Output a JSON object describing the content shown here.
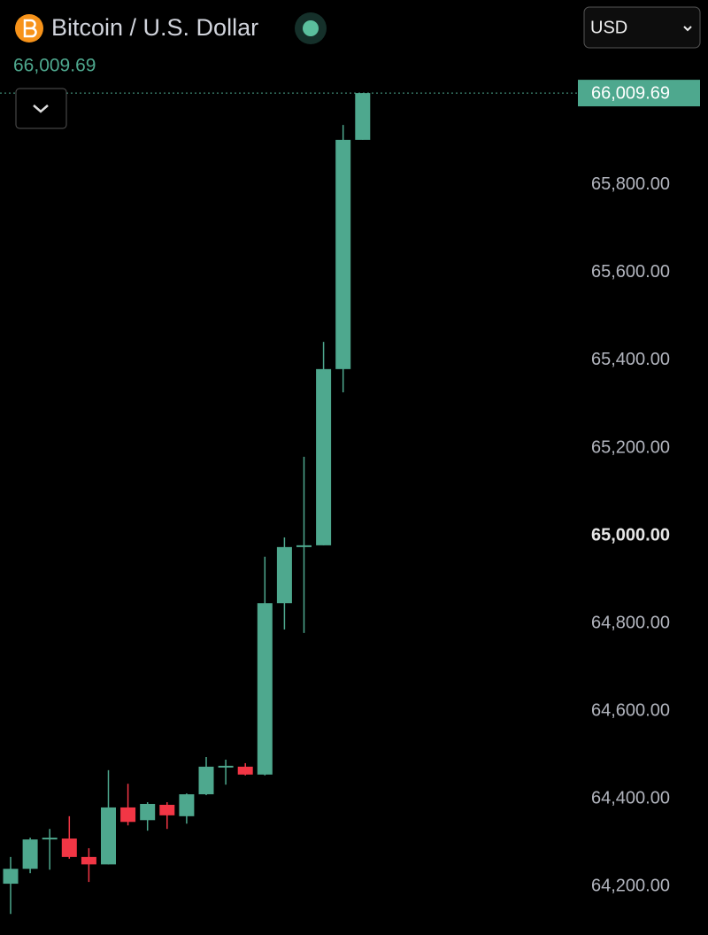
{
  "chart_data": {
    "type": "candlestick",
    "title": "Bitcoin / U.S. Dollar",
    "price_label": "66,009.69",
    "categories": [
      null,
      null,
      null,
      null,
      null,
      null,
      null,
      null,
      null,
      null,
      null,
      null,
      null,
      null,
      null,
      null,
      null,
      null,
      null
    ],
    "open": [
      64206,
      64240,
      64307,
      64309,
      64267,
      64250,
      64380,
      64351,
      64386,
      64360,
      64410,
      64471,
      64473,
      64455,
      64846,
      64974,
      64978,
      65380,
      65903
    ],
    "high": [
      64267,
      64311,
      64331,
      64360,
      64287,
      64465,
      64434,
      64392,
      64392,
      64412,
      64495,
      64489,
      64481,
      64952,
      64996,
      65180,
      65442,
      65937,
      66009.69
    ],
    "low": [
      64137,
      64230,
      64238,
      64263,
      64210,
      64250,
      64339,
      64327,
      64331,
      64343,
      64408,
      64432,
      64453,
      64453,
      64786,
      64778,
      64978,
      65327,
      65903
    ],
    "close": [
      64240,
      64307,
      64311,
      64267,
      64250,
      64380,
      64347,
      64388,
      64362,
      64410,
      64473,
      64475,
      64455,
      64846,
      64974,
      64978,
      65380,
      65903,
      66009.69
    ],
    "up_color": "#4ea88e",
    "down_color": "#f23645",
    "ylim": [
      64089,
      66222
    ],
    "yticks": [
      {
        "value": 64200,
        "label": "64,200.00"
      },
      {
        "value": 64400,
        "label": "64,400.00"
      },
      {
        "value": 64600,
        "label": "64,600.00"
      },
      {
        "value": 64800,
        "label": "64,800.00"
      },
      {
        "value": 65000,
        "label": "65,000.00",
        "bold": true
      },
      {
        "value": 65200,
        "label": "65,200.00"
      },
      {
        "value": 65400,
        "label": "65,400.00"
      },
      {
        "value": 65600,
        "label": "65,600.00"
      },
      {
        "value": 65800,
        "label": "65,800.00"
      }
    ]
  },
  "controls": {
    "currency": "USD"
  }
}
